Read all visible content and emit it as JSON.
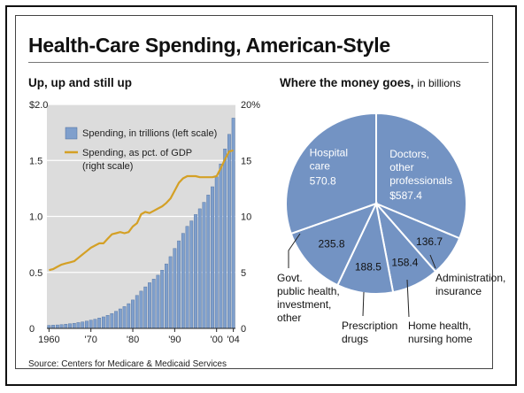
{
  "title": "Health-Care Spending, American-Style",
  "source": "Source: Centers for Medicare & Medicaid Services",
  "colors": {
    "bar": "#7f9fcc",
    "bar_stroke": "#4d6f9e",
    "line": "#d4a025",
    "plot_bg": "#dcdcdc",
    "pie": "#7393c3"
  },
  "chart_data": [
    {
      "type": "bar",
      "title": "Up, up and still up",
      "x": [
        1960,
        1961,
        1962,
        1963,
        1964,
        1965,
        1966,
        1967,
        1968,
        1969,
        1970,
        1971,
        1972,
        1973,
        1974,
        1975,
        1976,
        1977,
        1978,
        1979,
        1980,
        1981,
        1982,
        1983,
        1984,
        1985,
        1986,
        1987,
        1988,
        1989,
        1990,
        1991,
        1992,
        1993,
        1994,
        1995,
        1996,
        1997,
        1998,
        1999,
        2000,
        2001,
        2002,
        2003,
        2004
      ],
      "series": [
        {
          "name": "Spending, in trillions (left scale)",
          "kind": "bar",
          "axis": "left",
          "values": [
            0.027,
            0.029,
            0.031,
            0.034,
            0.038,
            0.042,
            0.046,
            0.052,
            0.058,
            0.065,
            0.074,
            0.082,
            0.093,
            0.103,
            0.117,
            0.133,
            0.153,
            0.174,
            0.195,
            0.221,
            0.254,
            0.295,
            0.333,
            0.371,
            0.408,
            0.44,
            0.475,
            0.52,
            0.576,
            0.641,
            0.714,
            0.782,
            0.849,
            0.912,
            0.96,
            1.017,
            1.068,
            1.126,
            1.191,
            1.265,
            1.353,
            1.469,
            1.603,
            1.733,
            1.878
          ]
        },
        {
          "name": "Spending, as pct. of GDP (right scale)",
          "kind": "line",
          "axis": "right",
          "values": [
            5.2,
            5.3,
            5.5,
            5.7,
            5.8,
            5.9,
            6.0,
            6.3,
            6.6,
            6.9,
            7.2,
            7.4,
            7.6,
            7.6,
            8.0,
            8.4,
            8.5,
            8.6,
            8.5,
            8.6,
            9.1,
            9.4,
            10.2,
            10.4,
            10.3,
            10.5,
            10.7,
            10.9,
            11.2,
            11.6,
            12.3,
            13.0,
            13.4,
            13.6,
            13.6,
            13.6,
            13.5,
            13.5,
            13.5,
            13.5,
            13.6,
            14.3,
            15.1,
            15.8,
            15.9
          ]
        }
      ],
      "left_axis": {
        "ticks": [
          0,
          0.5,
          1.0,
          1.5,
          2.0
        ],
        "labels": [
          "0",
          "0.5",
          "1.0",
          "1.5",
          "$2.0"
        ],
        "range": [
          0,
          2.0
        ]
      },
      "right_axis": {
        "ticks": [
          0,
          5,
          10,
          15,
          20
        ],
        "labels": [
          "0",
          "5",
          "10",
          "15",
          "20%"
        ],
        "range": [
          0,
          20
        ]
      },
      "x_ticks": [
        {
          "x": 1960,
          "label": "1960"
        },
        {
          "x": 1970,
          "label": "'70"
        },
        {
          "x": 1980,
          "label": "'80"
        },
        {
          "x": 1990,
          "label": "'90"
        },
        {
          "x": 2000,
          "label": "'00"
        },
        {
          "x": 2004,
          "label": "'04"
        }
      ],
      "legend": [
        "Spending, in trillions (left scale)",
        "Spending, as pct. of GDP",
        "(right scale)"
      ],
      "grid": true,
      "legend_position": "top-left"
    },
    {
      "type": "pie",
      "title": "Where the money goes,",
      "subtitle": "in billions",
      "slices": [
        {
          "category": "Doctors, other professionals",
          "value": 587.4,
          "label_lines": [
            "Doctors,",
            "other",
            "professionals"
          ],
          "value_label": "$587.4"
        },
        {
          "category": "Administration, insurance",
          "value": 136.7,
          "label_lines": [
            "Administration,",
            "insurance"
          ],
          "value_label": "136.7"
        },
        {
          "category": "Home health, nursing home",
          "value": 158.4,
          "label_lines": [
            "Home health,",
            "nursing home"
          ],
          "value_label": "158.4"
        },
        {
          "category": "Prescription drugs",
          "value": 188.5,
          "label_lines": [
            "Prescription",
            "drugs"
          ],
          "value_label": "188.5"
        },
        {
          "category": "Govt. public health, investment, other",
          "value": 235.8,
          "label_lines": [
            "Govt.",
            "public health,",
            "investment,",
            "other"
          ],
          "value_label": "235.8"
        },
        {
          "category": "Hospital care",
          "value": 570.8,
          "label_lines": [
            "Hospital",
            "care"
          ],
          "value_label": "570.8"
        }
      ]
    }
  ]
}
